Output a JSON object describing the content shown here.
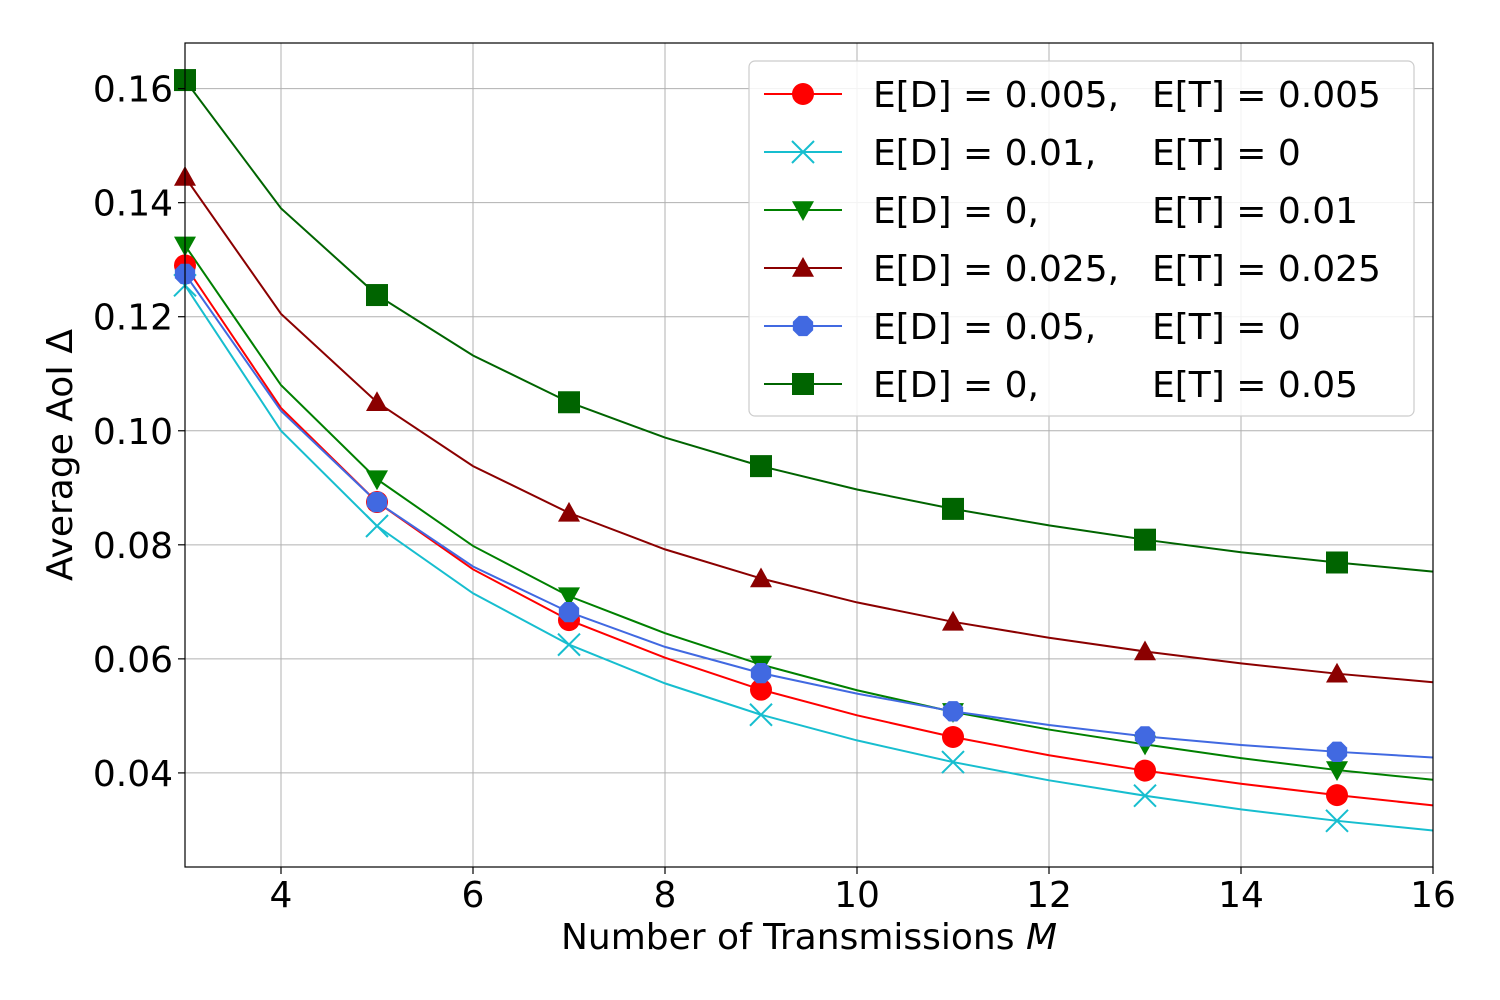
{
  "chart_data": {
    "type": "line",
    "title": "",
    "xlabel": "Number of Transmissions ",
    "xlabel_var": "M",
    "ylabel": "Average AoI Δ",
    "xlim": [
      3,
      16
    ],
    "ylim": [
      0.0235,
      0.168
    ],
    "xticks": [
      4,
      6,
      8,
      10,
      12,
      14,
      16
    ],
    "xtick_labels": [
      "4",
      "6",
      "8",
      "10",
      "12",
      "14",
      "16"
    ],
    "yticks": [
      0.04,
      0.06,
      0.08,
      0.1,
      0.12,
      0.14,
      0.16
    ],
    "ytick_labels": [
      "0.04",
      "0.06",
      "0.08",
      "0.10",
      "0.12",
      "0.14",
      "0.16"
    ],
    "grid": true,
    "legend_position": "top-right",
    "x": [
      3,
      4,
      5,
      6,
      7,
      8,
      9,
      10,
      11,
      12,
      13,
      14,
      15,
      16
    ],
    "marker_x": [
      3,
      5,
      7,
      9,
      11,
      13,
      15
    ],
    "series": [
      {
        "name": "E[D] = 0.005, E[T] = 0.005",
        "label_d": "E[D] = 0.005,",
        "label_t": "E[T] = 0.005",
        "color": "#ff0000",
        "marker": "circle",
        "values": [
          0.129,
          0.104,
          0.0875,
          0.0757,
          0.0668,
          0.0602,
          0.0546,
          0.0501,
          0.0463,
          0.0431,
          0.0404,
          0.0381,
          0.0361,
          0.0343
        ]
      },
      {
        "name": "E[D] = 0.01, E[T] = 0",
        "label_d": "E[D] = 0.01,",
        "label_t": "E[T] = 0",
        "color": "#17becf",
        "marker": "x",
        "values": [
          0.1255,
          0.1,
          0.0833,
          0.0715,
          0.0625,
          0.0557,
          0.0502,
          0.0457,
          0.0419,
          0.0387,
          0.036,
          0.0336,
          0.0316,
          0.0299
        ]
      },
      {
        "name": "E[D] = 0, E[T] = 0.01",
        "label_d": "E[D] = 0,",
        "label_t": "E[T] = 0.01",
        "color": "#008000",
        "marker": "triangle-down",
        "values": [
          0.1325,
          0.108,
          0.0915,
          0.0798,
          0.071,
          0.0645,
          0.059,
          0.0545,
          0.0507,
          0.0476,
          0.045,
          0.0426,
          0.0405,
          0.0388
        ]
      },
      {
        "name": "E[D] = 0.025, E[T] = 0.025",
        "label_d": "E[D] = 0.025,",
        "label_t": "E[T] = 0.025",
        "color": "#8b0000",
        "marker": "triangle-up",
        "values": [
          0.1445,
          0.1205,
          0.105,
          0.0938,
          0.0856,
          0.0792,
          0.0741,
          0.0699,
          0.0665,
          0.0637,
          0.0613,
          0.0592,
          0.0574,
          0.0559
        ]
      },
      {
        "name": "E[D] = 0.05, E[T] = 0",
        "label_d": "E[D] = 0.05,",
        "label_t": "E[T] = 0",
        "color": "#4169e1",
        "marker": "octagon",
        "values": [
          0.1275,
          0.1035,
          0.0875,
          0.0762,
          0.0682,
          0.0621,
          0.0575,
          0.0539,
          0.0508,
          0.0484,
          0.0464,
          0.0449,
          0.0437,
          0.0427
        ]
      },
      {
        "name": "E[D] = 0, E[T] = 0.05",
        "label_d": "E[D] = 0,",
        "label_t": "E[T] = 0.05",
        "color": "#006400",
        "marker": "square",
        "values": [
          0.1615,
          0.139,
          0.1238,
          0.1132,
          0.105,
          0.0988,
          0.0938,
          0.0897,
          0.0863,
          0.0834,
          0.0809,
          0.0787,
          0.0769,
          0.0753
        ]
      }
    ]
  }
}
